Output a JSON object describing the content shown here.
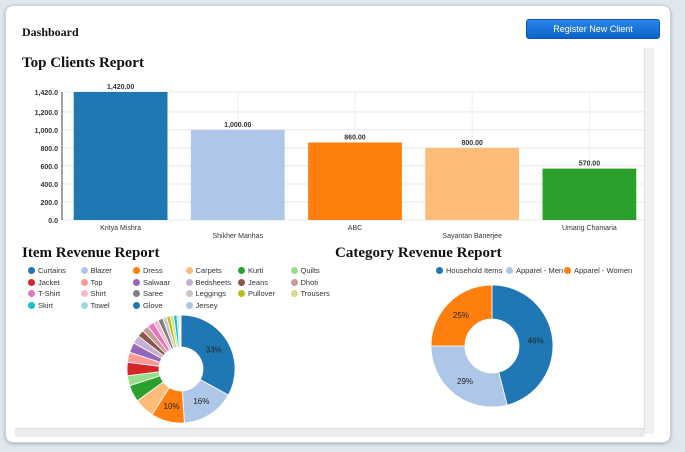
{
  "header": {
    "title": "Dashboard",
    "register_button": "Register New Client"
  },
  "top_clients": {
    "title": "Top Clients Report",
    "y_ticks": [
      "0.0",
      "200.0",
      "400.0",
      "600.0",
      "800.0",
      "1,000.0",
      "1,200.0",
      "1,420.0"
    ],
    "value_labels": [
      "1,420.00",
      "1,000.00",
      "860.00",
      "800.00",
      "570.00"
    ]
  },
  "item_revenue": {
    "title": "Item Revenue Report",
    "legend": [
      "Curtains",
      "Blazer",
      "Dress",
      "Carpets",
      "Kurti",
      "Quilts",
      "Jacket",
      "Top",
      "Salwaar",
      "Bedsheets",
      "Jeans",
      "Dhoti",
      "T-Shirt",
      "Shirt",
      "Saree",
      "Leggings",
      "Pullover",
      "Trousers",
      "Skirt",
      "Towel",
      "Glove",
      "Jersey"
    ],
    "slice_labels": [
      "33%",
      "16%",
      "10%"
    ]
  },
  "category_revenue": {
    "title": "Category Revenue Report",
    "legend": [
      "Household Items",
      "Apparel - Men",
      "Apparel - Women"
    ],
    "slice_labels": [
      "46%",
      "29%",
      "25%"
    ]
  },
  "colors": {
    "palette": [
      "#1f77b4",
      "#aec7e8",
      "#ff7f0e",
      "#ffbb78",
      "#2ca02c",
      "#98df8a",
      "#d62728",
      "#ff9896",
      "#9467bd",
      "#c5b0d5",
      "#8c564b",
      "#c49c94",
      "#e377c2",
      "#f7b6d2",
      "#7f7f7f",
      "#c7c7c7",
      "#bcbd22",
      "#dbdb8d",
      "#17becf",
      "#9edae5"
    ],
    "button": "#1a73d9"
  },
  "chart_data": [
    {
      "type": "bar",
      "title": "Top Clients Report",
      "categories": [
        "Kritya Mishra",
        "Shikher Manhas",
        "ABC",
        "Sayantan Banerjee",
        "Umang Chamaria"
      ],
      "values": [
        1420,
        1000,
        860,
        800,
        570
      ],
      "colors": [
        "#1f77b4",
        "#aec7e8",
        "#ff7f0e",
        "#ffbb78",
        "#2ca02c"
      ],
      "ylim": [
        0,
        1420
      ],
      "grid": true
    },
    {
      "type": "pie",
      "title": "Item Revenue Report",
      "categories": [
        "Curtains",
        "Blazer",
        "Dress",
        "Carpets",
        "Kurti",
        "Quilts",
        "Jacket",
        "Top",
        "Salwaar",
        "Bedsheets",
        "Jeans",
        "Dhoti",
        "T-Shirt",
        "Shirt",
        "Saree",
        "Leggings",
        "Pullover",
        "Trousers",
        "Skirt",
        "Towel",
        "Glove",
        "Jersey"
      ],
      "values": [
        33,
        16,
        10,
        6,
        5,
        3,
        4,
        3,
        3,
        2.5,
        2,
        2,
        2,
        1.5,
        1.5,
        1.2,
        1.1,
        1,
        1,
        0.6,
        0.3,
        0.3
      ],
      "donut": true,
      "legend": "top"
    },
    {
      "type": "pie",
      "title": "Category Revenue Report",
      "categories": [
        "Household Items",
        "Apparel - Men",
        "Apparel - Women"
      ],
      "values": [
        46,
        29,
        25
      ],
      "donut": true,
      "legend": "top"
    }
  ]
}
